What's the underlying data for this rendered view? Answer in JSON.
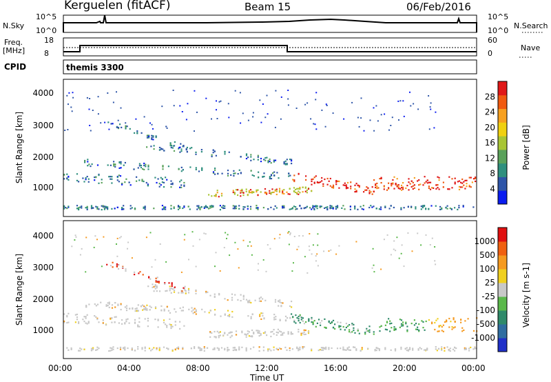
{
  "header": {
    "site": "Kerguelen (fitACF)",
    "beam": "Beam 15",
    "date": "06/Feb/2016"
  },
  "top_panels": {
    "nsky_label": "N.Sky",
    "nsky_ticks": [
      "10^5",
      "10^0"
    ],
    "nsearch_label": "N.Search",
    "nsearch_ticks": [
      "10^5",
      "10^0"
    ],
    "freq_label_1": "Freq.",
    "freq_label_2": "[MHz]",
    "freq_ticks": [
      "18",
      "8"
    ],
    "nave_label": "Nave",
    "nave_ticks": [
      "60",
      "0"
    ],
    "cpid_label": "CPID",
    "cpid_value": "themis 3300"
  },
  "chart_data": [
    {
      "type": "heatmap",
      "name": "power",
      "ylabel": "Slant Range [km]",
      "xlabel": "",
      "yticks": [
        "4000",
        "3000",
        "2000",
        "1000"
      ],
      "ylim": [
        200,
        4500
      ],
      "colorbar": {
        "label": "Power [dB]",
        "ticks": [
          "28",
          "24",
          "20",
          "16",
          "12",
          "8",
          "4"
        ],
        "colors": [
          "#0a1cf0",
          "#2e55a8",
          "#2f8f7e",
          "#5aa15a",
          "#a8c534",
          "#f0d010",
          "#f7a020",
          "#f05a10",
          "#e01818"
        ]
      }
    },
    {
      "type": "heatmap",
      "name": "velocity",
      "ylabel": "Slant Range [km]",
      "xlabel": "Time UT",
      "yticks": [
        "4000",
        "3000",
        "2000",
        "1000"
      ],
      "ylim": [
        200,
        4500
      ],
      "xticks": [
        "00:00",
        "04:00",
        "08:00",
        "12:00",
        "16:00",
        "20:00",
        "00:00"
      ],
      "colorbar": {
        "label": "Velocity [m s-1]",
        "ticks": [
          "1000",
          "500",
          "100",
          "25",
          "-25",
          "-100",
          "-500",
          "-1000"
        ],
        "colors": [
          "#2030c8",
          "#2f6da0",
          "#2f8a6a",
          "#5ab84a",
          "#c8c8c8",
          "#f0d020",
          "#f59a20",
          "#f06010",
          "#e01010"
        ]
      }
    }
  ]
}
